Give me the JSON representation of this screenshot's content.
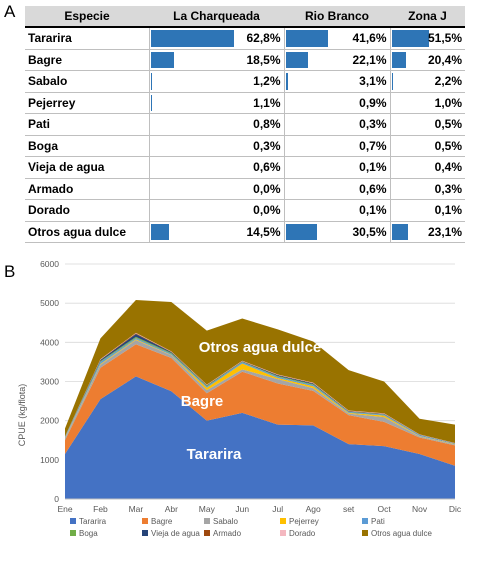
{
  "panel_labels": {
    "a": "A",
    "b": "B"
  },
  "colors": {
    "Tararira": "#4472c4",
    "Bagre": "#ed7d31",
    "Sabalo": "#a5a5a5",
    "Pejerrey": "#ffc000",
    "Pati": "#5b9bd5",
    "Boga": "#70ad47",
    "Vieja de agua": "#264478",
    "Armado": "#9e480e",
    "Dorado": "#f4b8c0",
    "Otros agua dulce": "#997300",
    "table_bar": "#2e75b6"
  },
  "table": {
    "headers": [
      "Especie",
      "La Charqueada",
      "Rio Branco",
      "Zona J"
    ],
    "rows": [
      {
        "species": "Tararira",
        "values": [
          "62,8%",
          "41,6%",
          "51,5%"
        ],
        "fractions": [
          0.628,
          0.416,
          0.515
        ]
      },
      {
        "species": "Bagre",
        "values": [
          "18,5%",
          "22,1%",
          "20,4%"
        ],
        "fractions": [
          0.185,
          0.221,
          0.204
        ]
      },
      {
        "species": "Sabalo",
        "values": [
          "1,2%",
          "3,1%",
          "2,2%"
        ],
        "fractions": [
          0.012,
          0.031,
          0.022
        ]
      },
      {
        "species": "Pejerrey",
        "values": [
          "1,1%",
          "0,9%",
          "1,0%"
        ],
        "fractions": [
          0.011,
          0.009,
          0.01
        ]
      },
      {
        "species": "Pati",
        "values": [
          "0,8%",
          "0,3%",
          "0,5%"
        ],
        "fractions": [
          0.008,
          0.003,
          0.005
        ]
      },
      {
        "species": "Boga",
        "values": [
          "0,3%",
          "0,7%",
          "0,5%"
        ],
        "fractions": [
          0.003,
          0.007,
          0.005
        ]
      },
      {
        "species": "Vieja de agua",
        "values": [
          "0,6%",
          "0,1%",
          "0,4%"
        ],
        "fractions": [
          0.006,
          0.001,
          0.004
        ]
      },
      {
        "species": "Armado",
        "values": [
          "0,0%",
          "0,6%",
          "0,3%"
        ],
        "fractions": [
          0.0,
          0.006,
          0.003
        ]
      },
      {
        "species": "Dorado",
        "values": [
          "0,0%",
          "0,1%",
          "0,1%"
        ],
        "fractions": [
          0.0,
          0.001,
          0.001
        ]
      },
      {
        "species": "Otros agua dulce",
        "values": [
          "14,5%",
          "30,5%",
          "23,1%"
        ],
        "fractions": [
          0.145,
          0.305,
          0.231
        ]
      }
    ]
  },
  "chart_data": {
    "type": "area",
    "stacked": true,
    "categories": [
      "Ene",
      "Feb",
      "Mar",
      "Abr",
      "May",
      "Jun",
      "Jul",
      "Ago",
      "set",
      "Oct",
      "Nov",
      "Dic"
    ],
    "ylabel": "CPUE (kg/flota)",
    "ylim": [
      0,
      6000
    ],
    "yticks": [
      0,
      1000,
      2000,
      3000,
      4000,
      5000,
      6000
    ],
    "grid": true,
    "legend_position": "bottom",
    "annotations": [
      "Otros agua dulce",
      "Bagre",
      "Tararira"
    ],
    "series": [
      {
        "name": "Tararira",
        "values": [
          1150,
          2550,
          3130,
          2750,
          2000,
          2200,
          1900,
          1880,
          1400,
          1350,
          1150,
          850
        ]
      },
      {
        "name": "Bagre",
        "values": [
          350,
          800,
          820,
          850,
          700,
          1050,
          1050,
          880,
          740,
          620,
          420,
          520
        ]
      },
      {
        "name": "Sabalo",
        "values": [
          50,
          80,
          110,
          70,
          80,
          60,
          110,
          70,
          40,
          120,
          30,
          20
        ]
      },
      {
        "name": "Pejerrey",
        "values": [
          10,
          20,
          20,
          10,
          60,
          150,
          30,
          50,
          20,
          40,
          10,
          10
        ]
      },
      {
        "name": "Pati",
        "values": [
          20,
          50,
          30,
          30,
          30,
          30,
          30,
          30,
          20,
          20,
          20,
          10
        ]
      },
      {
        "name": "Boga",
        "values": [
          5,
          20,
          30,
          20,
          20,
          10,
          20,
          20,
          10,
          10,
          5,
          5
        ]
      },
      {
        "name": "Vieja de agua",
        "values": [
          5,
          30,
          70,
          20,
          10,
          10,
          20,
          20,
          10,
          10,
          5,
          5
        ]
      },
      {
        "name": "Armado",
        "values": [
          5,
          10,
          20,
          10,
          10,
          10,
          10,
          10,
          10,
          10,
          5,
          5
        ]
      },
      {
        "name": "Dorado",
        "values": [
          5,
          10,
          10,
          10,
          10,
          10,
          10,
          10,
          10,
          10,
          5,
          5
        ]
      },
      {
        "name": "Otros agua dulce",
        "values": [
          200,
          530,
          840,
          1260,
          1380,
          1080,
          1150,
          1050,
          1030,
          810,
          400,
          470
        ]
      }
    ]
  }
}
